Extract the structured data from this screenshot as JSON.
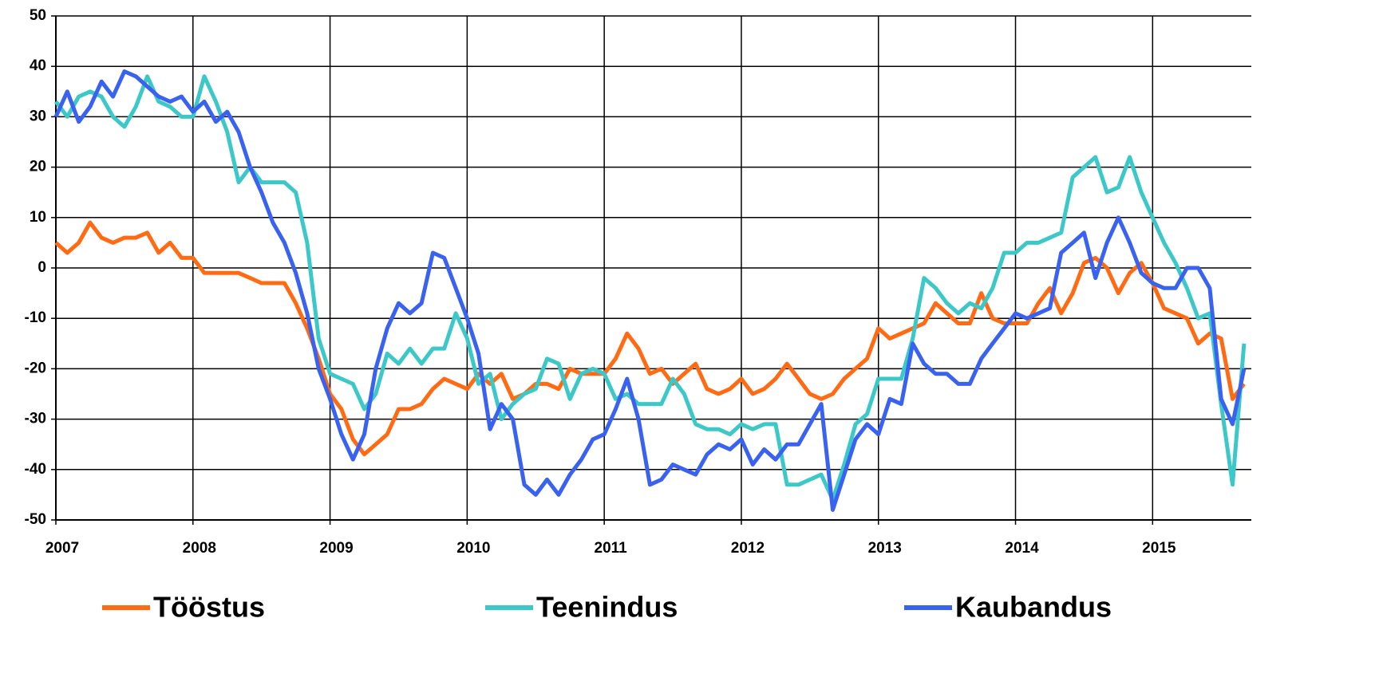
{
  "chart_data": {
    "type": "line",
    "x": [
      2007,
      2007.083,
      2007.167,
      2007.25,
      2007.333,
      2007.417,
      2007.5,
      2007.583,
      2007.667,
      2007.75,
      2007.833,
      2007.917,
      2008,
      2008.083,
      2008.167,
      2008.25,
      2008.333,
      2008.417,
      2008.5,
      2008.583,
      2008.667,
      2008.75,
      2008.833,
      2008.917,
      2009,
      2009.083,
      2009.167,
      2009.25,
      2009.333,
      2009.417,
      2009.5,
      2009.583,
      2009.667,
      2009.75,
      2009.833,
      2009.917,
      2010,
      2010.083,
      2010.167,
      2010.25,
      2010.333,
      2010.417,
      2010.5,
      2010.583,
      2010.667,
      2010.75,
      2010.833,
      2010.917,
      2011,
      2011.083,
      2011.167,
      2011.25,
      2011.333,
      2011.417,
      2011.5,
      2011.583,
      2011.667,
      2011.75,
      2011.833,
      2011.917,
      2012,
      2012.083,
      2012.167,
      2012.25,
      2012.333,
      2012.417,
      2012.5,
      2012.583,
      2012.667,
      2012.75,
      2012.833,
      2012.917,
      2013,
      2013.083,
      2013.167,
      2013.25,
      2013.333,
      2013.417,
      2013.5,
      2013.583,
      2013.667,
      2013.75,
      2013.833,
      2013.917,
      2014,
      2014.083,
      2014.167,
      2014.25,
      2014.333,
      2014.417,
      2014.5,
      2014.583,
      2014.667,
      2014.75,
      2014.833,
      2014.917,
      2015,
      2015.083,
      2015.167,
      2015.25,
      2015.333,
      2015.417,
      2015.5,
      2015.583,
      2015.667
    ],
    "series": [
      {
        "name": "Tööstus",
        "color": "#ff6a13",
        "values": [
          5,
          3,
          5,
          9,
          6,
          5,
          6,
          6,
          7,
          3,
          5,
          2,
          2,
          -1,
          -1,
          -1,
          -1,
          -2,
          -3,
          -3,
          -3,
          -7,
          -12,
          -18,
          -25,
          -28,
          -34,
          -37,
          -35,
          -33,
          -28,
          -28,
          -27,
          -24,
          -22,
          -23,
          -24,
          -21,
          -23,
          -21,
          -26,
          -25,
          -23,
          -23,
          -24,
          -20,
          -21,
          -21,
          -21,
          -18,
          -13,
          -16,
          -21,
          -20,
          -23,
          -21,
          -19,
          -24,
          -25,
          -24,
          -22,
          -25,
          -24,
          -22,
          -19,
          -22,
          -25,
          -26,
          -25,
          -22,
          -20,
          -18,
          -12,
          -14,
          -13,
          -12,
          -11,
          -7,
          -9,
          -11,
          -11,
          -5,
          -10,
          -11,
          -11,
          -11,
          -7,
          -4,
          -9,
          -5,
          1,
          2,
          0,
          -5,
          -1,
          1,
          -3,
          -8,
          -9,
          -10,
          -15,
          -13,
          -14,
          -26,
          -23
        ]
      },
      {
        "name": "Teenindus",
        "color": "#3cc8c8",
        "values": [
          33,
          30,
          34,
          35,
          34,
          30,
          28,
          32,
          38,
          33,
          32,
          30,
          30,
          38,
          33,
          27,
          17,
          20,
          17,
          17,
          17,
          15,
          5,
          -14,
          -21,
          -22,
          -23,
          -28,
          -25,
          -17,
          -19,
          -16,
          -19,
          -16,
          -16,
          -9,
          -14,
          -23,
          -21,
          -30,
          -27,
          -25,
          -24,
          -18,
          -19,
          -26,
          -21,
          -20,
          -21,
          -26,
          -25,
          -27,
          -27,
          -27,
          -22,
          -25,
          -31,
          -32,
          -32,
          -33,
          -31,
          -32,
          -31,
          -31,
          -43,
          -43,
          -42,
          -41,
          -46,
          -39,
          -31,
          -29,
          -22,
          -22,
          -22,
          -14,
          -2,
          -4,
          -7,
          -9,
          -7,
          -8,
          -4,
          3,
          3,
          5,
          5,
          6,
          7,
          18,
          20,
          22,
          15,
          16,
          22,
          15,
          10,
          5,
          1,
          -4,
          -10,
          -9,
          -27,
          -43,
          -15
        ]
      },
      {
        "name": "Kaubandus",
        "color": "#3a62f0",
        "values": [
          30,
          35,
          29,
          32,
          37,
          34,
          39,
          38,
          36,
          34,
          33,
          34,
          31,
          33,
          29,
          31,
          27,
          20,
          15,
          9,
          5,
          -1,
          -9,
          -20,
          -26,
          -33,
          -38,
          -33,
          -20,
          -12,
          -7,
          -9,
          -7,
          3,
          2,
          -4,
          -10,
          -17,
          -32,
          -27,
          -30,
          -43,
          -45,
          -42,
          -45,
          -41,
          -38,
          -34,
          -33,
          -28,
          -22,
          -30,
          -43,
          -42,
          -39,
          -40,
          -41,
          -37,
          -35,
          -36,
          -34,
          -39,
          -36,
          -38,
          -35,
          -35,
          -31,
          -27,
          -48,
          -41,
          -34,
          -31,
          -33,
          -26,
          -27,
          -15,
          -19,
          -21,
          -21,
          -23,
          -23,
          -18,
          -15,
          -12,
          -9,
          -10,
          -9,
          -8,
          3,
          5,
          7,
          -2,
          5,
          10,
          5,
          -1,
          -3,
          -4,
          -4,
          0,
          0,
          -4,
          -26,
          -31,
          -20
        ]
      }
    ],
    "xlim": [
      2007,
      2015.72
    ],
    "xticks": [
      2007,
      2008,
      2009,
      2010,
      2011,
      2012,
      2013,
      2014,
      2015
    ],
    "ylim": [
      -50,
      50
    ],
    "yticks": [
      -50,
      -40,
      -30,
      -20,
      -10,
      0,
      10,
      20,
      30,
      40,
      50
    ],
    "grid": true,
    "legend": "bottom"
  }
}
